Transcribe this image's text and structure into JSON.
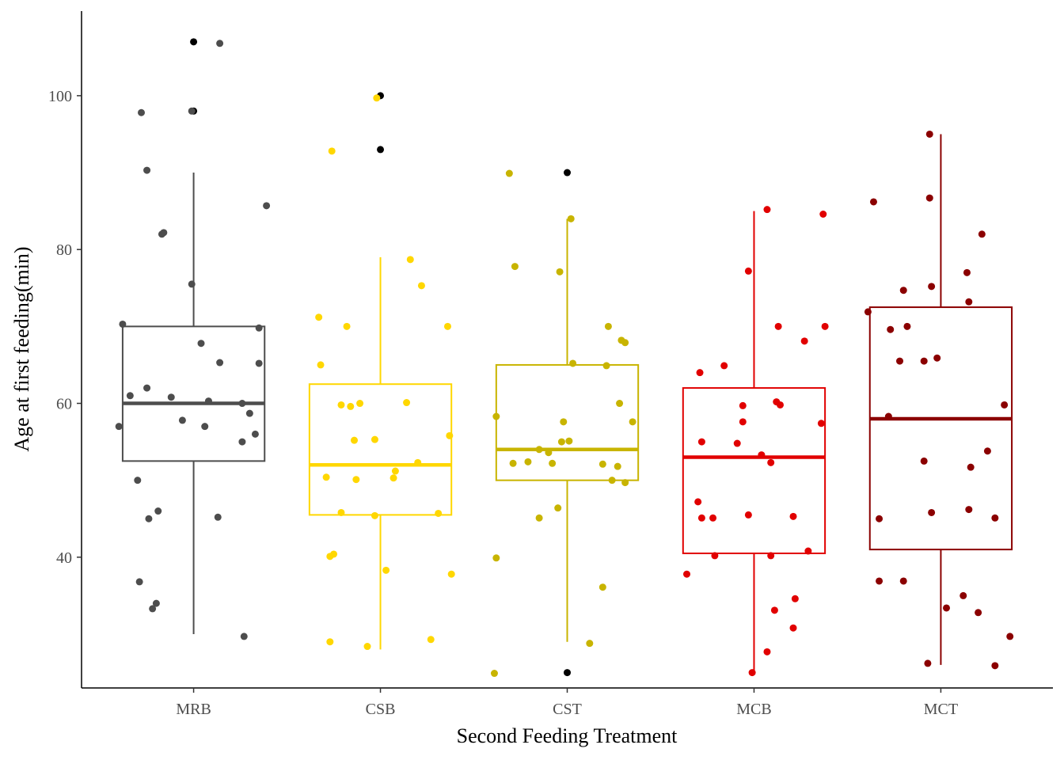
{
  "chart_data": {
    "type": "box",
    "title": "",
    "xlabel": "Second Feeding Treatment",
    "ylabel": "Age at first feeding(min)",
    "ylim": [
      23,
      111
    ],
    "yticks": [
      40,
      60,
      80,
      100
    ],
    "categories": [
      "MRB",
      "CSB",
      "CST",
      "MCB",
      "MCT"
    ],
    "grid": false,
    "legend": "none",
    "outlier_color": "#000000",
    "series": [
      {
        "name": "MRB",
        "color": "#4d4d4d",
        "box": {
          "q1": 52.5,
          "median": 60,
          "q3": 70,
          "whisker_low": 30,
          "whisker_high": 90
        },
        "outliers": [
          107,
          98
        ],
        "points": [
          {
            "x": -0.4,
            "y": 57
          },
          {
            "x": -0.38,
            "y": 70.3
          },
          {
            "x": -0.34,
            "y": 61
          },
          {
            "x": -0.3,
            "y": 50
          },
          {
            "x": -0.29,
            "y": 36.8
          },
          {
            "x": -0.28,
            "y": 97.8
          },
          {
            "x": -0.25,
            "y": 62
          },
          {
            "x": -0.25,
            "y": 90.3
          },
          {
            "x": -0.24,
            "y": 45
          },
          {
            "x": -0.22,
            "y": 33.3
          },
          {
            "x": -0.2,
            "y": 34
          },
          {
            "x": -0.19,
            "y": 46
          },
          {
            "x": -0.17,
            "y": 82
          },
          {
            "x": -0.16,
            "y": 82.2
          },
          {
            "x": -0.12,
            "y": 60.8
          },
          {
            "x": -0.06,
            "y": 57.8
          },
          {
            "x": -0.01,
            "y": 98
          },
          {
            "x": -0.01,
            "y": 75.5
          },
          {
            "x": 0.04,
            "y": 67.8
          },
          {
            "x": 0.06,
            "y": 57
          },
          {
            "x": 0.08,
            "y": 60.3
          },
          {
            "x": 0.13,
            "y": 45.2
          },
          {
            "x": 0.14,
            "y": 65.3
          },
          {
            "x": 0.14,
            "y": 106.8
          },
          {
            "x": 0.27,
            "y": 29.7
          },
          {
            "x": 0.26,
            "y": 55
          },
          {
            "x": 0.26,
            "y": 60
          },
          {
            "x": 0.3,
            "y": 58.7
          },
          {
            "x": 0.33,
            "y": 56
          },
          {
            "x": 0.35,
            "y": 65.2
          },
          {
            "x": 0.35,
            "y": 69.8
          },
          {
            "x": 0.39,
            "y": 85.7
          }
        ]
      },
      {
        "name": "CSB",
        "color": "#ffd700",
        "box": {
          "q1": 45.5,
          "median": 52,
          "q3": 62.5,
          "whisker_low": 28,
          "whisker_high": 79
        },
        "outliers": [
          100,
          93
        ],
        "points": [
          {
            "x": -0.33,
            "y": 71.2
          },
          {
            "x": -0.32,
            "y": 65
          },
          {
            "x": -0.29,
            "y": 50.4
          },
          {
            "x": -0.27,
            "y": 29
          },
          {
            "x": -0.27,
            "y": 40.1
          },
          {
            "x": -0.25,
            "y": 40.4
          },
          {
            "x": -0.26,
            "y": 92.8
          },
          {
            "x": -0.21,
            "y": 59.8
          },
          {
            "x": -0.21,
            "y": 45.8
          },
          {
            "x": -0.18,
            "y": 70
          },
          {
            "x": -0.16,
            "y": 59.6
          },
          {
            "x": -0.14,
            "y": 55.2
          },
          {
            "x": -0.13,
            "y": 50.1
          },
          {
            "x": -0.11,
            "y": 60
          },
          {
            "x": -0.07,
            "y": 28.4
          },
          {
            "x": -0.03,
            "y": 45.4
          },
          {
            "x": -0.03,
            "y": 55.3
          },
          {
            "x": -0.02,
            "y": 99.7
          },
          {
            "x": 0.03,
            "y": 38.3
          },
          {
            "x": 0.07,
            "y": 50.3
          },
          {
            "x": 0.08,
            "y": 51.2
          },
          {
            "x": 0.14,
            "y": 60.1
          },
          {
            "x": 0.16,
            "y": 78.7
          },
          {
            "x": 0.2,
            "y": 52.3
          },
          {
            "x": 0.22,
            "y": 75.3
          },
          {
            "x": 0.27,
            "y": 29.3
          },
          {
            "x": 0.31,
            "y": 45.7
          },
          {
            "x": 0.36,
            "y": 70
          },
          {
            "x": 0.37,
            "y": 55.8
          },
          {
            "x": 0.38,
            "y": 37.8
          }
        ]
      },
      {
        "name": "CST",
        "color": "#c8b400",
        "box": {
          "q1": 50,
          "median": 54,
          "q3": 65,
          "whisker_low": 29,
          "whisker_high": 84
        },
        "outliers": [
          90,
          25
        ],
        "points": [
          {
            "x": -0.39,
            "y": 24.9
          },
          {
            "x": -0.38,
            "y": 39.9
          },
          {
            "x": -0.38,
            "y": 58.3
          },
          {
            "x": -0.31,
            "y": 89.9
          },
          {
            "x": -0.29,
            "y": 52.2
          },
          {
            "x": -0.28,
            "y": 77.8
          },
          {
            "x": -0.21,
            "y": 52.4
          },
          {
            "x": -0.15,
            "y": 54
          },
          {
            "x": -0.15,
            "y": 45.1
          },
          {
            "x": -0.1,
            "y": 53.6
          },
          {
            "x": -0.08,
            "y": 52.2
          },
          {
            "x": -0.05,
            "y": 46.4
          },
          {
            "x": -0.04,
            "y": 77.1
          },
          {
            "x": -0.03,
            "y": 55
          },
          {
            "x": -0.02,
            "y": 57.6
          },
          {
            "x": 0.01,
            "y": 55.1
          },
          {
            "x": 0.02,
            "y": 84
          },
          {
            "x": 0.03,
            "y": 65.2
          },
          {
            "x": 0.12,
            "y": 28.8
          },
          {
            "x": 0.19,
            "y": 36.1
          },
          {
            "x": 0.19,
            "y": 52.1
          },
          {
            "x": 0.21,
            "y": 64.9
          },
          {
            "x": 0.22,
            "y": 70
          },
          {
            "x": 0.24,
            "y": 50
          },
          {
            "x": 0.27,
            "y": 51.8
          },
          {
            "x": 0.28,
            "y": 60
          },
          {
            "x": 0.29,
            "y": 68.2
          },
          {
            "x": 0.31,
            "y": 67.9
          },
          {
            "x": 0.31,
            "y": 49.7
          },
          {
            "x": 0.35,
            "y": 57.6
          }
        ]
      },
      {
        "name": "MCB",
        "color": "#e10000",
        "box": {
          "q1": 40.5,
          "median": 53,
          "q3": 62,
          "whisker_low": 25,
          "whisker_high": 85
        },
        "outliers": [],
        "points": [
          {
            "x": -0.36,
            "y": 37.8
          },
          {
            "x": -0.3,
            "y": 47.2
          },
          {
            "x": -0.29,
            "y": 64
          },
          {
            "x": -0.28,
            "y": 55
          },
          {
            "x": -0.28,
            "y": 45.1
          },
          {
            "x": -0.22,
            "y": 45.1
          },
          {
            "x": -0.21,
            "y": 40.2
          },
          {
            "x": -0.16,
            "y": 64.9
          },
          {
            "x": -0.09,
            "y": 54.8
          },
          {
            "x": -0.06,
            "y": 57.6
          },
          {
            "x": -0.06,
            "y": 59.7
          },
          {
            "x": -0.03,
            "y": 77.2
          },
          {
            "x": -0.03,
            "y": 45.5
          },
          {
            "x": -0.01,
            "y": 25
          },
          {
            "x": 0.04,
            "y": 53.3
          },
          {
            "x": 0.07,
            "y": 27.7
          },
          {
            "x": 0.07,
            "y": 85.2
          },
          {
            "x": 0.09,
            "y": 52.3
          },
          {
            "x": 0.09,
            "y": 40.2
          },
          {
            "x": 0.11,
            "y": 33.1
          },
          {
            "x": 0.12,
            "y": 60.2
          },
          {
            "x": 0.13,
            "y": 70
          },
          {
            "x": 0.14,
            "y": 59.8
          },
          {
            "x": 0.21,
            "y": 30.8
          },
          {
            "x": 0.22,
            "y": 34.6
          },
          {
            "x": 0.21,
            "y": 45.3
          },
          {
            "x": 0.27,
            "y": 68.1
          },
          {
            "x": 0.29,
            "y": 40.8
          },
          {
            "x": 0.36,
            "y": 57.4
          },
          {
            "x": 0.37,
            "y": 84.6
          },
          {
            "x": 0.38,
            "y": 70
          }
        ]
      },
      {
        "name": "MCT",
        "color": "#8b0000",
        "box": {
          "q1": 41,
          "median": 58,
          "q3": 72.5,
          "whisker_low": 26,
          "whisker_high": 95
        },
        "outliers": [],
        "points": [
          {
            "x": -0.39,
            "y": 71.9
          },
          {
            "x": -0.36,
            "y": 86.2
          },
          {
            "x": -0.33,
            "y": 45
          },
          {
            "x": -0.33,
            "y": 36.9
          },
          {
            "x": -0.28,
            "y": 58.3
          },
          {
            "x": -0.27,
            "y": 69.6
          },
          {
            "x": -0.22,
            "y": 65.5
          },
          {
            "x": -0.2,
            "y": 36.9
          },
          {
            "x": -0.2,
            "y": 74.7
          },
          {
            "x": -0.18,
            "y": 70
          },
          {
            "x": -0.09,
            "y": 52.5
          },
          {
            "x": -0.09,
            "y": 65.5
          },
          {
            "x": -0.07,
            "y": 26.2
          },
          {
            "x": -0.06,
            "y": 86.7
          },
          {
            "x": -0.06,
            "y": 95
          },
          {
            "x": -0.05,
            "y": 75.2
          },
          {
            "x": -0.05,
            "y": 45.8
          },
          {
            "x": -0.02,
            "y": 65.9
          },
          {
            "x": 0.03,
            "y": 33.4
          },
          {
            "x": 0.12,
            "y": 35
          },
          {
            "x": 0.14,
            "y": 77
          },
          {
            "x": 0.15,
            "y": 73.2
          },
          {
            "x": 0.15,
            "y": 46.2
          },
          {
            "x": 0.16,
            "y": 51.7
          },
          {
            "x": 0.2,
            "y": 32.8
          },
          {
            "x": 0.22,
            "y": 82
          },
          {
            "x": 0.25,
            "y": 53.8
          },
          {
            "x": 0.29,
            "y": 45.1
          },
          {
            "x": 0.29,
            "y": 25.9
          },
          {
            "x": 0.34,
            "y": 59.8
          },
          {
            "x": 0.37,
            "y": 29.7
          }
        ]
      }
    ]
  }
}
